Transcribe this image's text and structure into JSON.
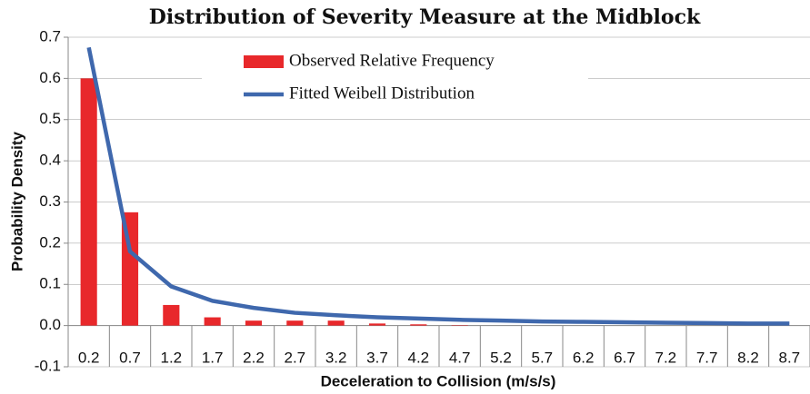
{
  "chart_data": {
    "type": "bar-line",
    "title": "Distribution of Severity Measure at the Midblock",
    "x_label": "Deceleration to Collision (m/s/s)",
    "y_label": "Probability Density",
    "categories": [
      "0.2",
      "0.7",
      "1.2",
      "1.7",
      "2.2",
      "2.7",
      "3.2",
      "3.7",
      "4.2",
      "4.7",
      "5.2",
      "5.7",
      "6.2",
      "6.7",
      "7.2",
      "7.7",
      "8.2",
      "8.7"
    ],
    "series": [
      {
        "name": "Observed Relative Frequency",
        "kind": "bar",
        "color": "#e8282b",
        "values": [
          0.6,
          0.275,
          0.05,
          0.02,
          0.012,
          0.012,
          0.012,
          0.005,
          0.003,
          0.001,
          0,
          0,
          0,
          0,
          0,
          0,
          0,
          0
        ]
      },
      {
        "name": "Fitted Weibell Distribution",
        "kind": "line",
        "color": "#3f68ad",
        "values": [
          0.675,
          0.18,
          0.095,
          0.06,
          0.043,
          0.031,
          0.025,
          0.02,
          0.017,
          0.014,
          0.012,
          0.01,
          0.009,
          0.008,
          0.007,
          0.006,
          0.005,
          0.005
        ]
      }
    ],
    "ylim": [
      -0.1,
      0.7
    ],
    "yticks": [
      -0.1,
      {
        "value": 0,
        "label": "0.0"
      },
      0.1,
      0.2,
      0.3,
      0.4,
      0.5,
      0.6,
      0.7
    ],
    "grid": true,
    "legend": "top"
  }
}
